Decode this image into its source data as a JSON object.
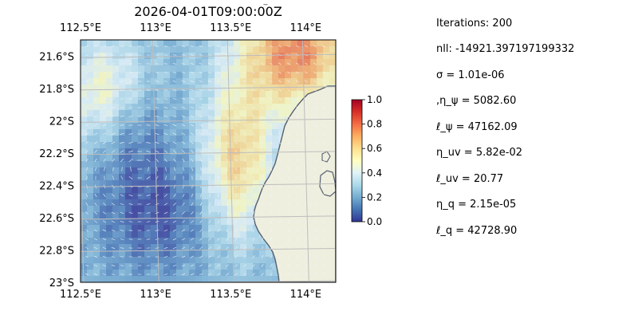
{
  "figure": {
    "title": "2026-04-01T09:00:00Z",
    "title_fragment": "_",
    "map": {
      "lon_range": [
        112.5,
        114.2
      ],
      "lat_range": [
        -23.0,
        -21.5
      ],
      "top_ticks": [
        "112.5°E",
        "113°E",
        "113.5°E",
        "114°E"
      ],
      "top_tick_lons": [
        112.5,
        113.0,
        113.5,
        114.0
      ],
      "bottom_ticks": [
        "112.5°E",
        "113°E",
        "113.5°E",
        "114°E"
      ],
      "bottom_tick_lons": [
        112.5,
        113.0,
        113.5,
        114.0
      ],
      "left_ticks": [
        "21.6°S",
        "21.8°S",
        "22°S",
        "22.2°S",
        "22.4°S",
        "22.6°S",
        "22.8°S",
        "23°S"
      ],
      "left_tick_lats": [
        -21.6,
        -21.8,
        -22.0,
        -22.2,
        -22.4,
        -22.6,
        -22.8,
        -23.0
      ],
      "colors": {
        "ocean_blank": "#a9c4e4",
        "land": "#efefdf",
        "coast": "#555f70",
        "grid": "#bdbdbd",
        "arrows": "#f2f4f8"
      }
    },
    "colorbar": {
      "min": 0.0,
      "max": 1.0,
      "ticks": [
        "0.0",
        "0.2",
        "0.4",
        "0.6",
        "0.8",
        "1.0"
      ],
      "tick_values": [
        0.0,
        0.2,
        0.4,
        0.6,
        0.8,
        1.0
      ],
      "colormap": "RdYlBu_r"
    }
  },
  "stats": {
    "iterations": "Iterations: 200",
    "nll": "nll: -14921.397197199332",
    "sigma": "σ = 1.01e-06",
    "eta_psi": ",η_ψ = 5082.60",
    "ell_psi": "ℓ_ψ = 47162.09",
    "eta_uv": "η_uv = 5.82e-02",
    "ell_uv": "ℓ_uv = 20.77",
    "eta_q": "η_q = 2.15e-05",
    "ell_q": "ℓ_q = 42728.90"
  }
}
